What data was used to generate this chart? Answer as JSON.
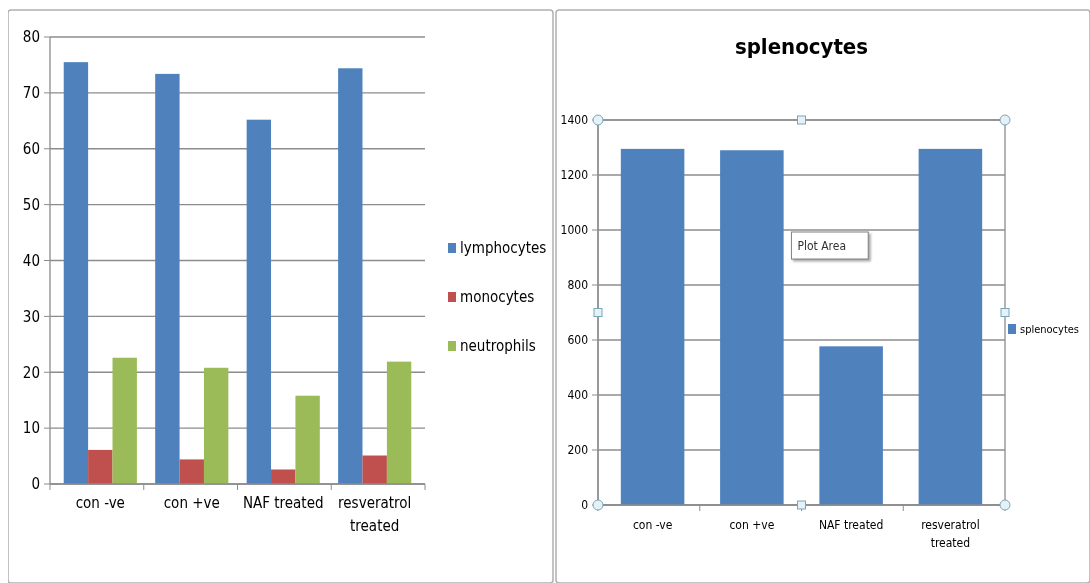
{
  "chart_data": [
    {
      "type": "bar",
      "categories": [
        "con -ve",
        "con +ve",
        "NAF treated",
        "resveratrol treated"
      ],
      "series": [
        {
          "name": "lymphocytes",
          "color": "#4f81bd",
          "values": [
            75.5,
            73.4,
            65.2,
            74.4
          ]
        },
        {
          "name": "monocytes",
          "color": "#c0504d",
          "values": [
            6.1,
            4.4,
            2.6,
            5.1
          ]
        },
        {
          "name": "neutrophils",
          "color": "#9bbb59",
          "values": [
            22.6,
            20.8,
            15.8,
            21.9
          ]
        }
      ],
      "ylim": [
        0,
        80
      ],
      "yticks": [
        0,
        10,
        20,
        30,
        40,
        50,
        60,
        70,
        80
      ],
      "grid": "y",
      "legend": "right"
    },
    {
      "type": "bar",
      "title": "splenocytes",
      "categories": [
        "con -ve",
        "con +ve",
        "NAF treated",
        "resveratrol treated"
      ],
      "series": [
        {
          "name": "splenocytes",
          "color": "#4f81bd",
          "values": [
            1295,
            1290,
            577,
            1295
          ]
        }
      ],
      "ylim": [
        0,
        1400
      ],
      "yticks": [
        0,
        200,
        400,
        600,
        800,
        1000,
        1200,
        1400
      ],
      "grid": "y",
      "legend": "right",
      "annotations": [
        "Plot Area"
      ]
    }
  ]
}
